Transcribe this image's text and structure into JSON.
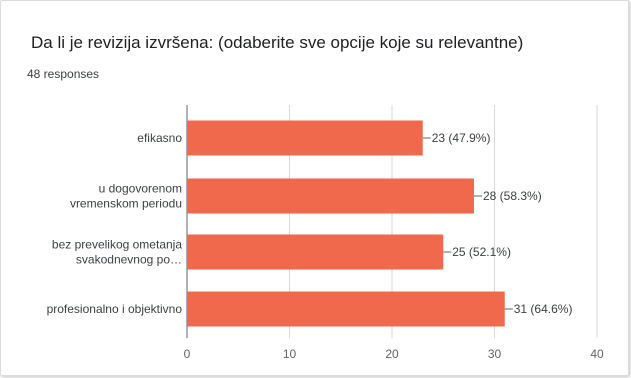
{
  "title": "Da li je revizija izvršena: (odaberite sve opcije koje su relevantne)",
  "responses": "48 responses",
  "chart_data": {
    "type": "bar",
    "orientation": "horizontal",
    "categories": [
      [
        "efikasno"
      ],
      [
        "u dogovorenom",
        "vremenskom periodu"
      ],
      [
        "bez prevelikog ometanja",
        "svakodnevnog po…"
      ],
      [
        "profesionalno i objektivno"
      ]
    ],
    "values": [
      23,
      28,
      25,
      31
    ],
    "data_labels": [
      "23 (47.9%)",
      "28 (58.3%)",
      "25 (52.1%)",
      "31 (64.6%)"
    ],
    "xlim": [
      0,
      40
    ],
    "xticks": [
      0,
      10,
      20,
      30,
      40
    ],
    "grid": true,
    "bar_color": "#f0694d"
  }
}
